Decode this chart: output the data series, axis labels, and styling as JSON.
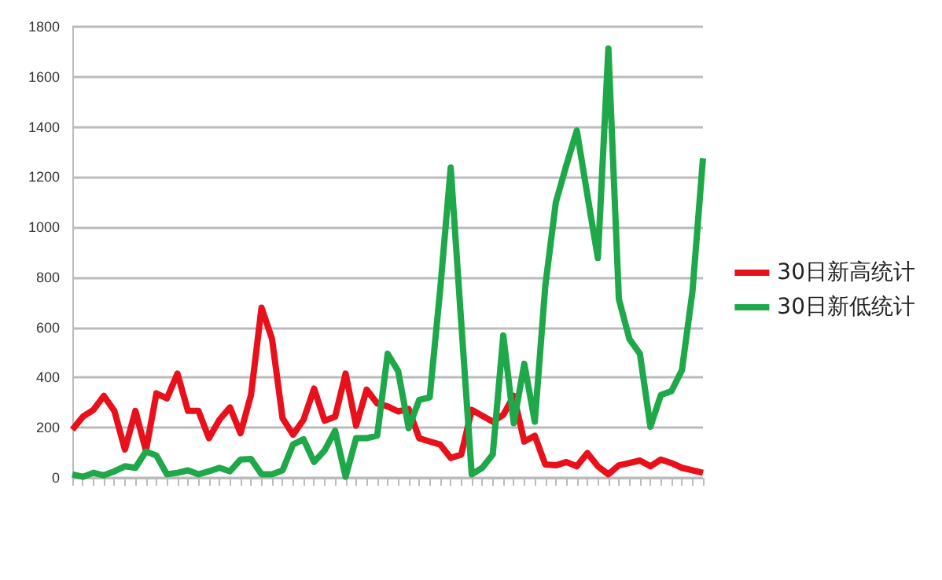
{
  "chart_data": {
    "type": "line",
    "categories": [
      null,
      null,
      null,
      null,
      null,
      null,
      null,
      null,
      null,
      null,
      null,
      null,
      null,
      null,
      null,
      null,
      null,
      null,
      null,
      null,
      null,
      null,
      null,
      null,
      null,
      null,
      null,
      null,
      null,
      null,
      null,
      null,
      null,
      null,
      null,
      null,
      null,
      null,
      null,
      null,
      null,
      null,
      null,
      null,
      null,
      null,
      null,
      null,
      null,
      null,
      null,
      null,
      null,
      null,
      null,
      null,
      null,
      null,
      null,
      null,
      null
    ],
    "series": [
      {
        "name": "30日新高统计",
        "color": "#e8101a",
        "values": [
          192,
          244,
          271,
          327,
          267,
          113,
          267,
          109,
          337,
          317,
          416,
          267,
          267,
          158,
          232,
          281,
          178,
          331,
          679,
          554,
          238,
          172,
          232,
          356,
          228,
          244,
          416,
          208,
          352,
          297,
          285,
          265,
          275,
          158,
          145,
          133,
          79,
          93,
          271,
          248,
          224,
          251,
          327,
          145,
          168,
          53,
          50,
          63,
          46,
          99,
          46,
          14,
          50,
          59,
          69,
          46,
          73,
          59,
          40,
          30,
          20
        ]
      },
      {
        "name": "30日新低统计",
        "color": "#1fa84a",
        "values": [
          14,
          4,
          20,
          10,
          26,
          46,
          40,
          105,
          89,
          14,
          20,
          30,
          14,
          26,
          40,
          26,
          73,
          75,
          14,
          14,
          30,
          133,
          154,
          63,
          109,
          188,
          4,
          158,
          158,
          168,
          495,
          426,
          198,
          311,
          321,
          752,
          1238,
          620,
          14,
          40,
          93,
          568,
          218,
          455,
          224,
          766,
          1099,
          1247,
          1386,
          1129,
          877,
          1713,
          713,
          554,
          495,
          204,
          331,
          346,
          430,
          743,
          1275
        ]
      }
    ],
    "ylim": [
      0,
      1800
    ],
    "yticks": [
      0,
      200,
      400,
      600,
      800,
      1000,
      1200,
      1400,
      1600,
      1800
    ],
    "grid": "y",
    "legend": "right",
    "marker": "none",
    "line_style": "solid"
  }
}
